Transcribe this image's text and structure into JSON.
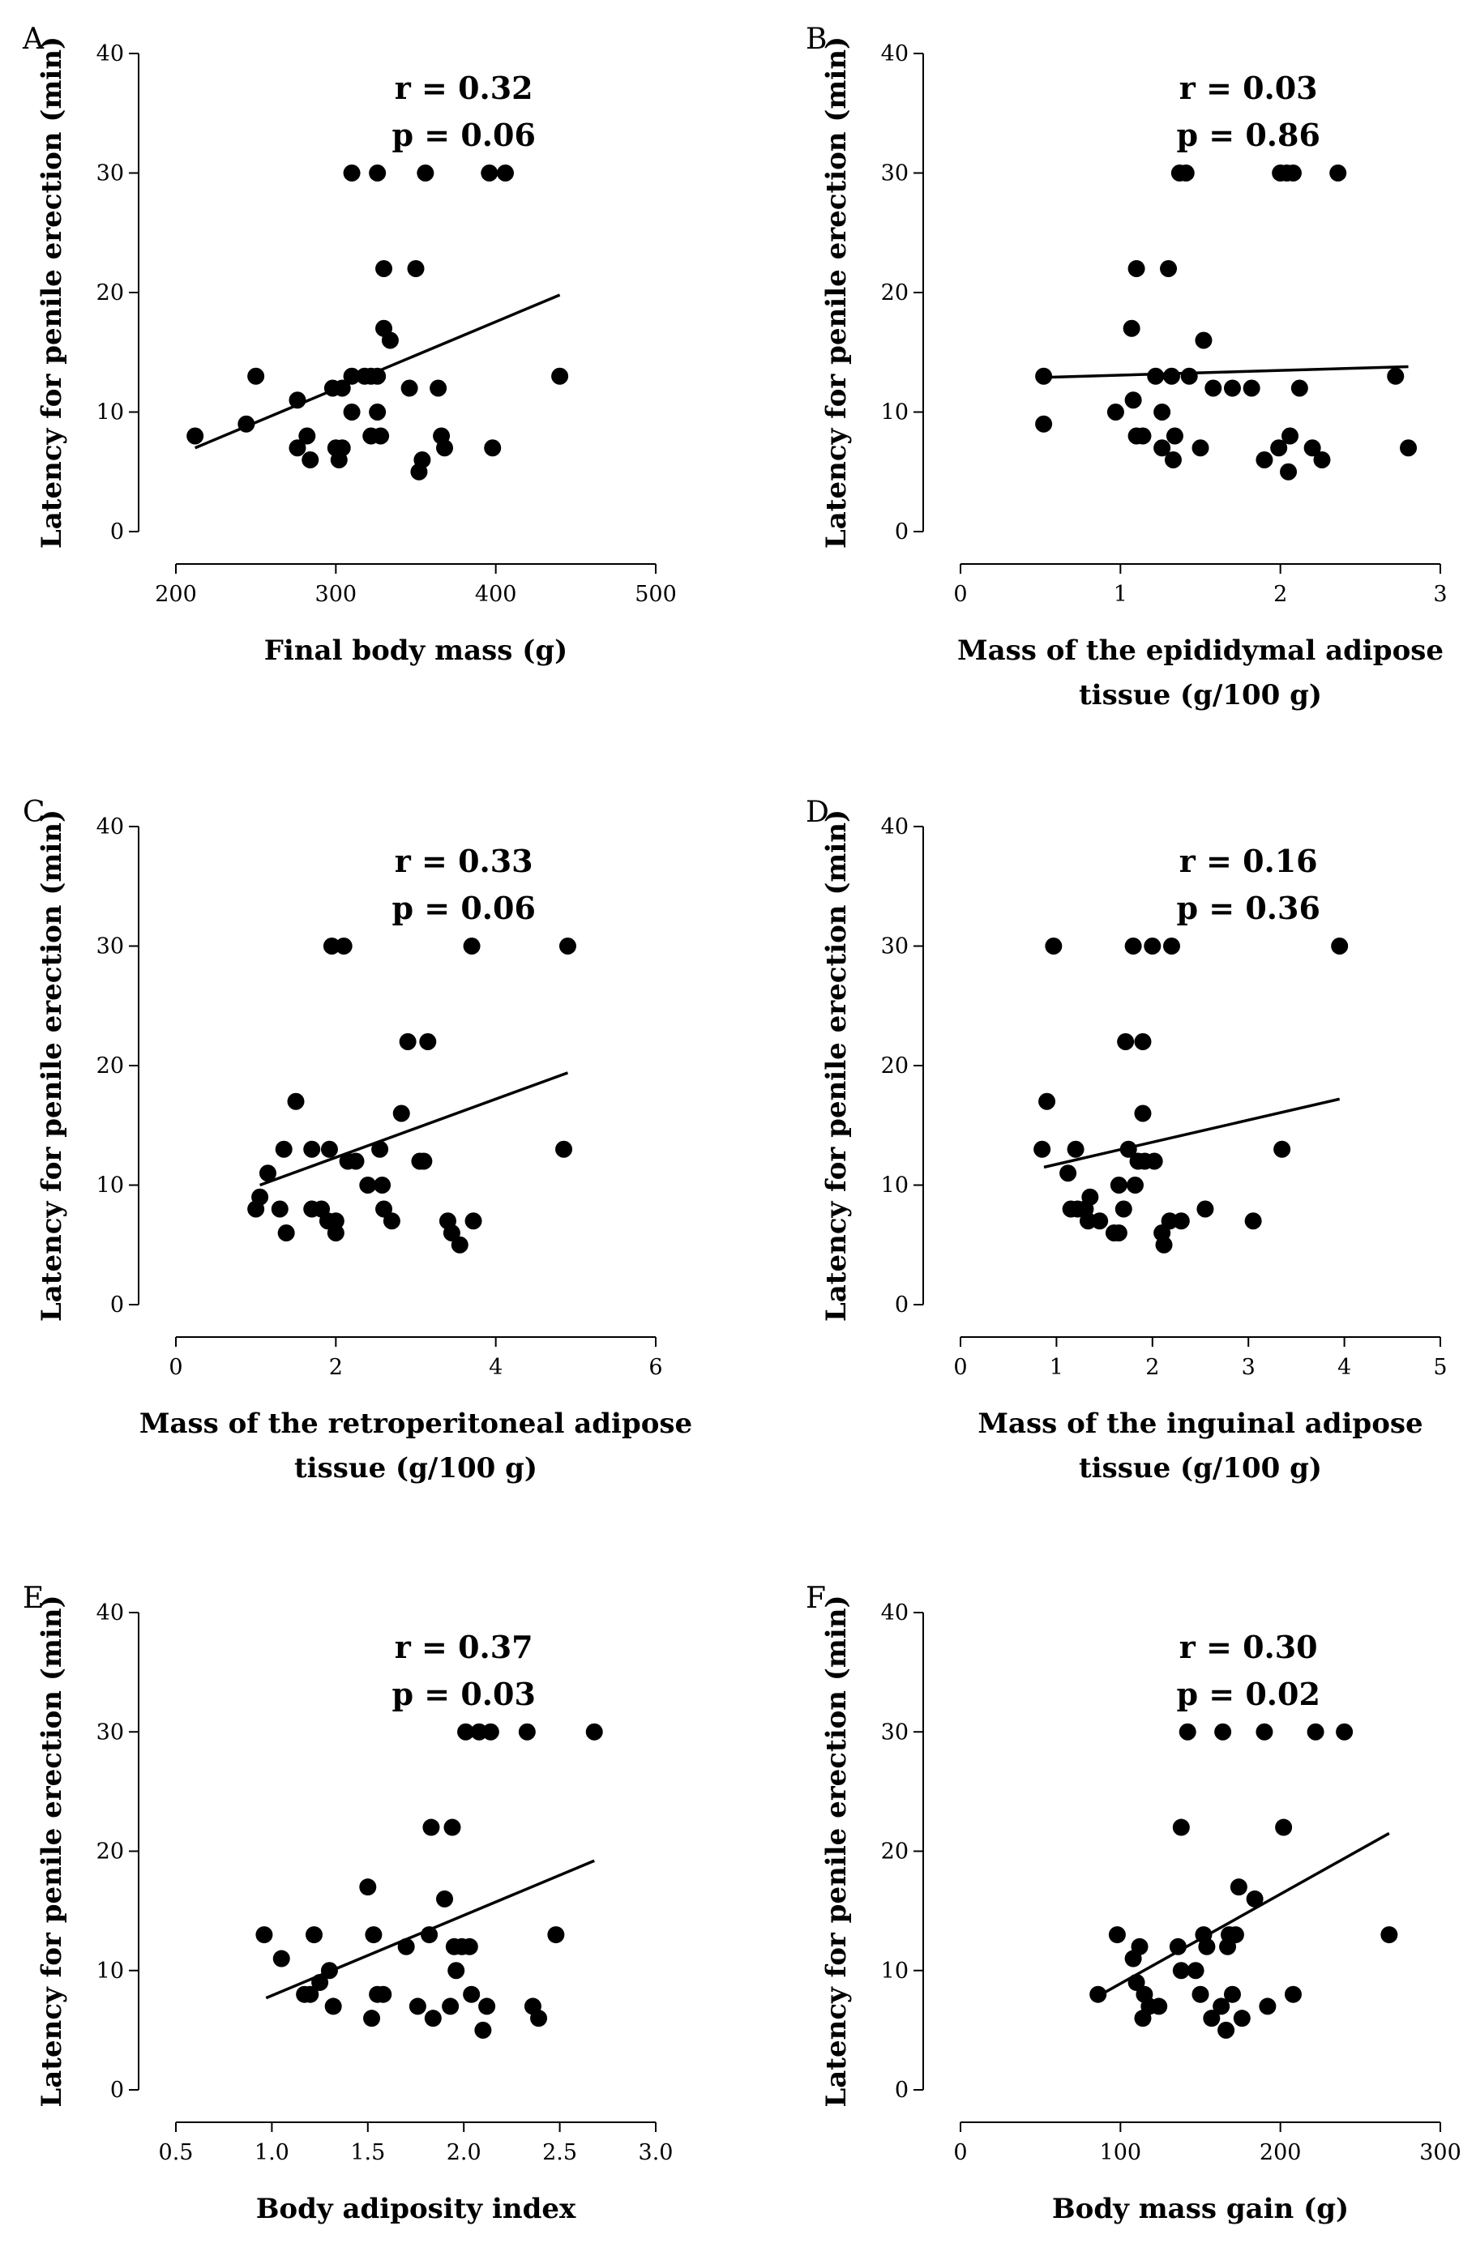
{
  "chart_data": [
    {
      "type": "scatter",
      "panel": "A",
      "xlabel": [
        "Final body mass (g)"
      ],
      "ylabel": "Latency for penile erection (min)",
      "xlim": [
        200,
        500
      ],
      "xticks": [
        200,
        300,
        400,
        500
      ],
      "xtick_labels": [
        "200",
        "300",
        "400",
        "500"
      ],
      "ylim": [
        0,
        40
      ],
      "yticks": [
        0,
        10,
        20,
        30,
        40
      ],
      "ytick_labels": [
        "0",
        "10",
        "20",
        "30",
        "40"
      ],
      "r_text": "r = 0.32",
      "p_text": "p = 0.06",
      "fit": {
        "x": [
          212,
          440
        ],
        "y": [
          7.0,
          19.8
        ]
      },
      "points": [
        [
          212,
          8
        ],
        [
          244,
          9
        ],
        [
          250,
          13
        ],
        [
          276,
          7
        ],
        [
          276,
          11
        ],
        [
          282,
          8
        ],
        [
          284,
          6
        ],
        [
          298,
          12
        ],
        [
          300,
          7
        ],
        [
          302,
          6
        ],
        [
          304,
          12
        ],
        [
          304,
          7
        ],
        [
          310,
          13
        ],
        [
          310,
          10
        ],
        [
          310,
          30
        ],
        [
          318,
          13
        ],
        [
          322,
          8
        ],
        [
          322,
          13
        ],
        [
          326,
          10
        ],
        [
          326,
          13
        ],
        [
          326,
          30
        ],
        [
          328,
          8
        ],
        [
          330,
          22
        ],
        [
          330,
          17
        ],
        [
          334,
          16
        ],
        [
          346,
          12
        ],
        [
          350,
          22
        ],
        [
          352,
          5
        ],
        [
          354,
          6
        ],
        [
          356,
          30
        ],
        [
          364,
          12
        ],
        [
          366,
          8
        ],
        [
          368,
          7
        ],
        [
          396,
          30
        ],
        [
          398,
          7
        ],
        [
          406,
          30
        ],
        [
          440,
          13
        ]
      ]
    },
    {
      "type": "scatter",
      "panel": "B",
      "xlabel": [
        "Mass of the epididymal adipose",
        "tissue (g/100 g)"
      ],
      "ylabel": "Latency for penile erection (min)",
      "xlim": [
        0,
        3
      ],
      "xticks": [
        0,
        1,
        2,
        3
      ],
      "xtick_labels": [
        "0",
        "1",
        "2",
        "3"
      ],
      "ylim": [
        0,
        40
      ],
      "yticks": [
        0,
        10,
        20,
        30,
        40
      ],
      "ytick_labels": [
        "0",
        "10",
        "20",
        "30",
        "40"
      ],
      "r_text": "r = 0.03",
      "p_text": "p = 0.86",
      "fit": {
        "x": [
          0.52,
          2.8
        ],
        "y": [
          12.9,
          13.8
        ]
      },
      "points": [
        [
          0.52,
          13
        ],
        [
          0.52,
          9
        ],
        [
          0.97,
          10
        ],
        [
          1.07,
          17
        ],
        [
          1.08,
          11
        ],
        [
          1.1,
          8
        ],
        [
          1.1,
          22
        ],
        [
          1.14,
          8
        ],
        [
          1.22,
          13
        ],
        [
          1.26,
          7
        ],
        [
          1.26,
          10
        ],
        [
          1.3,
          22
        ],
        [
          1.32,
          13
        ],
        [
          1.33,
          6
        ],
        [
          1.34,
          8
        ],
        [
          1.37,
          30
        ],
        [
          1.41,
          30
        ],
        [
          1.43,
          13
        ],
        [
          1.5,
          7
        ],
        [
          1.52,
          16
        ],
        [
          1.58,
          12
        ],
        [
          1.7,
          12
        ],
        [
          1.82,
          12
        ],
        [
          1.9,
          6
        ],
        [
          1.99,
          7
        ],
        [
          2.0,
          30
        ],
        [
          2.04,
          30
        ],
        [
          2.05,
          5
        ],
        [
          2.06,
          8
        ],
        [
          2.08,
          30
        ],
        [
          2.12,
          12
        ],
        [
          2.2,
          7
        ],
        [
          2.26,
          6
        ],
        [
          2.36,
          30
        ],
        [
          2.72,
          13
        ],
        [
          2.8,
          7
        ]
      ]
    },
    {
      "type": "scatter",
      "panel": "C",
      "xlabel": [
        "Mass of the retroperitoneal adipose",
        "tissue (g/100 g)"
      ],
      "ylabel": "Latency for penile erection (min)",
      "xlim": [
        0,
        6
      ],
      "xticks": [
        0,
        2,
        4,
        6
      ],
      "xtick_labels": [
        "0",
        "2",
        "4",
        "6"
      ],
      "ylim": [
        0,
        40
      ],
      "yticks": [
        0,
        10,
        20,
        30,
        40
      ],
      "ytick_labels": [
        "0",
        "10",
        "20",
        "30",
        "40"
      ],
      "r_text": "r = 0.33",
      "p_text": "p = 0.06",
      "fit": {
        "x": [
          1.05,
          4.9
        ],
        "y": [
          10.0,
          19.4
        ]
      },
      "points": [
        [
          1.0,
          8
        ],
        [
          1.05,
          9
        ],
        [
          1.15,
          11
        ],
        [
          1.3,
          8
        ],
        [
          1.35,
          13
        ],
        [
          1.38,
          6
        ],
        [
          1.5,
          17
        ],
        [
          1.7,
          8
        ],
        [
          1.7,
          13
        ],
        [
          1.82,
          8
        ],
        [
          1.9,
          7
        ],
        [
          1.92,
          13
        ],
        [
          1.95,
          30
        ],
        [
          2.0,
          6
        ],
        [
          2.0,
          7
        ],
        [
          2.1,
          30
        ],
        [
          2.15,
          12
        ],
        [
          2.25,
          12
        ],
        [
          2.4,
          10
        ],
        [
          2.55,
          13
        ],
        [
          2.58,
          10
        ],
        [
          2.6,
          8
        ],
        [
          2.7,
          7
        ],
        [
          2.82,
          16
        ],
        [
          2.9,
          22
        ],
        [
          3.05,
          12
        ],
        [
          3.1,
          12
        ],
        [
          3.15,
          22
        ],
        [
          3.4,
          7
        ],
        [
          3.45,
          6
        ],
        [
          3.55,
          5
        ],
        [
          3.7,
          30
        ],
        [
          3.72,
          7
        ],
        [
          4.85,
          13
        ],
        [
          4.9,
          30
        ]
      ]
    },
    {
      "type": "scatter",
      "panel": "D",
      "xlabel": [
        "Mass of the inguinal adipose",
        "tissue (g/100 g)"
      ],
      "ylabel": "Latency for penile erection (min)",
      "xlim": [
        0,
        5
      ],
      "xticks": [
        0,
        1,
        2,
        3,
        4,
        5
      ],
      "xtick_labels": [
        "0",
        "1",
        "2",
        "3",
        "4",
        "5"
      ],
      "ylim": [
        0,
        40
      ],
      "yticks": [
        0,
        10,
        20,
        30,
        40
      ],
      "ytick_labels": [
        "0",
        "10",
        "20",
        "30",
        "40"
      ],
      "r_text": "r = 0.16",
      "p_text": "p = 0.36",
      "fit": {
        "x": [
          0.87,
          3.95
        ],
        "y": [
          11.5,
          17.2
        ]
      },
      "points": [
        [
          0.85,
          13
        ],
        [
          0.9,
          17
        ],
        [
          0.97,
          30
        ],
        [
          1.12,
          11
        ],
        [
          1.15,
          8
        ],
        [
          1.2,
          13
        ],
        [
          1.22,
          8
        ],
        [
          1.3,
          8
        ],
        [
          1.33,
          7
        ],
        [
          1.35,
          9
        ],
        [
          1.45,
          7
        ],
        [
          1.6,
          6
        ],
        [
          1.65,
          6
        ],
        [
          1.65,
          10
        ],
        [
          1.7,
          8
        ],
        [
          1.72,
          22
        ],
        [
          1.75,
          13
        ],
        [
          1.8,
          30
        ],
        [
          1.82,
          10
        ],
        [
          1.85,
          12
        ],
        [
          1.9,
          22
        ],
        [
          1.9,
          16
        ],
        [
          1.92,
          12
        ],
        [
          2.0,
          30
        ],
        [
          2.02,
          12
        ],
        [
          2.1,
          6
        ],
        [
          2.12,
          5
        ],
        [
          2.18,
          7
        ],
        [
          2.2,
          30
        ],
        [
          2.3,
          7
        ],
        [
          2.55,
          8
        ],
        [
          3.05,
          7
        ],
        [
          3.35,
          13
        ],
        [
          3.95,
          30
        ]
      ]
    },
    {
      "type": "scatter",
      "panel": "E",
      "xlabel": [
        "Body adiposity index"
      ],
      "ylabel": "Latency for penile erection (min)",
      "xlim": [
        0.5,
        3.0
      ],
      "xticks": [
        0.5,
        1.0,
        1.5,
        2.0,
        2.5,
        3.0
      ],
      "xtick_labels": [
        "0.5",
        "1.0",
        "1.5",
        "2.0",
        "2.5",
        "3.0"
      ],
      "ylim": [
        0,
        40
      ],
      "yticks": [
        0,
        10,
        20,
        30,
        40
      ],
      "ytick_labels": [
        "0",
        "10",
        "20",
        "30",
        "40"
      ],
      "r_text": "r = 0.37",
      "p_text": "p = 0.03",
      "fit": {
        "x": [
          0.97,
          2.68
        ],
        "y": [
          7.7,
          19.2
        ]
      },
      "points": [
        [
          0.96,
          13
        ],
        [
          1.05,
          11
        ],
        [
          1.17,
          8
        ],
        [
          1.2,
          8
        ],
        [
          1.22,
          13
        ],
        [
          1.25,
          9
        ],
        [
          1.3,
          10
        ],
        [
          1.32,
          7
        ],
        [
          1.5,
          17
        ],
        [
          1.52,
          6
        ],
        [
          1.53,
          13
        ],
        [
          1.55,
          8
        ],
        [
          1.58,
          8
        ],
        [
          1.7,
          12
        ],
        [
          1.76,
          7
        ],
        [
          1.82,
          13
        ],
        [
          1.83,
          22
        ],
        [
          1.84,
          6
        ],
        [
          1.9,
          16
        ],
        [
          1.93,
          7
        ],
        [
          1.94,
          22
        ],
        [
          1.95,
          12
        ],
        [
          1.96,
          10
        ],
        [
          1.99,
          12
        ],
        [
          2.01,
          30
        ],
        [
          2.03,
          12
        ],
        [
          2.04,
          8
        ],
        [
          2.08,
          30
        ],
        [
          2.1,
          5
        ],
        [
          2.12,
          7
        ],
        [
          2.14,
          30
        ],
        [
          2.33,
          30
        ],
        [
          2.36,
          7
        ],
        [
          2.39,
          6
        ],
        [
          2.48,
          13
        ],
        [
          2.68,
          30
        ]
      ]
    },
    {
      "type": "scatter",
      "panel": "F",
      "xlabel": [
        "Body mass gain (g)"
      ],
      "ylabel": "Latency for penile erection (min)",
      "xlim": [
        0,
        300
      ],
      "xticks": [
        0,
        100,
        200,
        300
      ],
      "xtick_labels": [
        "0",
        "100",
        "200",
        "300"
      ],
      "ylim": [
        0,
        40
      ],
      "yticks": [
        0,
        10,
        20,
        30,
        40
      ],
      "ytick_labels": [
        "0",
        "10",
        "20",
        "30",
        "40"
      ],
      "r_text": "r = 0.30",
      "p_text": "p = 0.02",
      "fit": {
        "x": [
          88,
          268
        ],
        "y": [
          8.0,
          21.5
        ]
      },
      "points": [
        [
          86,
          8
        ],
        [
          98,
          13
        ],
        [
          108,
          11
        ],
        [
          110,
          9
        ],
        [
          112,
          12
        ],
        [
          114,
          6
        ],
        [
          115,
          8
        ],
        [
          118,
          7
        ],
        [
          124,
          7
        ],
        [
          136,
          12
        ],
        [
          138,
          22
        ],
        [
          138,
          10
        ],
        [
          142,
          30
        ],
        [
          147,
          10
        ],
        [
          150,
          8
        ],
        [
          152,
          13
        ],
        [
          154,
          12
        ],
        [
          157,
          6
        ],
        [
          163,
          7
        ],
        [
          164,
          30
        ],
        [
          166,
          5
        ],
        [
          167,
          12
        ],
        [
          168,
          13
        ],
        [
          170,
          8
        ],
        [
          172,
          13
        ],
        [
          174,
          17
        ],
        [
          176,
          6
        ],
        [
          184,
          16
        ],
        [
          190,
          30
        ],
        [
          192,
          7
        ],
        [
          202,
          22
        ],
        [
          208,
          8
        ],
        [
          222,
          30
        ],
        [
          240,
          30
        ],
        [
          268,
          13
        ]
      ]
    }
  ],
  "panels": [
    {
      "letter": "A"
    },
    {
      "letter": "B"
    },
    {
      "letter": "C"
    },
    {
      "letter": "D"
    },
    {
      "letter": "E"
    },
    {
      "letter": "F"
    }
  ]
}
